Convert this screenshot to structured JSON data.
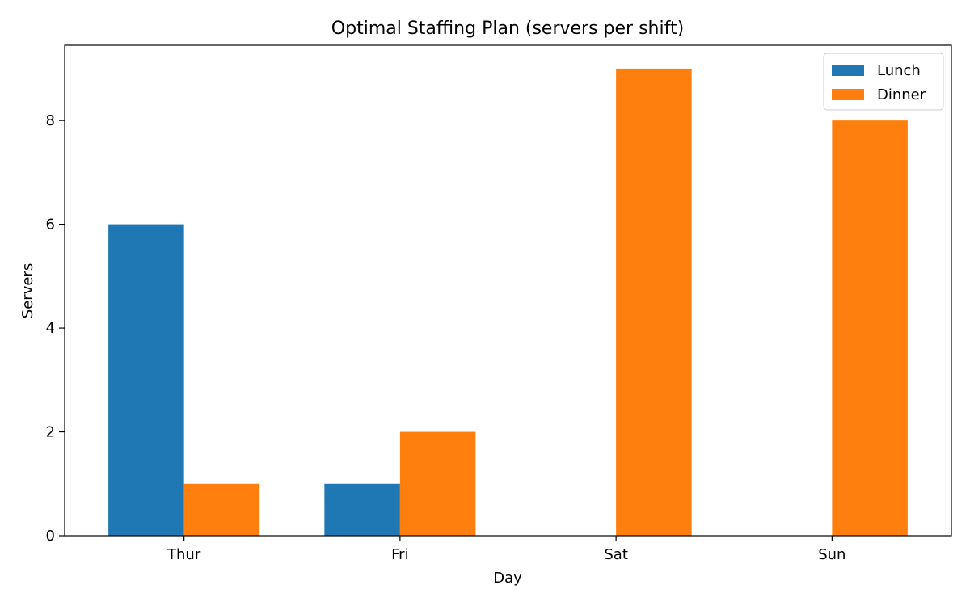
{
  "chart_data": {
    "type": "bar",
    "title": "Optimal Staffing Plan (servers per shift)",
    "xlabel": "Day",
    "ylabel": "Servers",
    "categories": [
      "Thur",
      "Fri",
      "Sat",
      "Sun"
    ],
    "series": [
      {
        "name": "Lunch",
        "color": "#1f77b4",
        "values": [
          6,
          1,
          0,
          0
        ]
      },
      {
        "name": "Dinner",
        "color": "#ff7f0e",
        "values": [
          1,
          2,
          9,
          8
        ]
      }
    ],
    "ylim": [
      0,
      9.45
    ],
    "yticks": [
      0,
      2,
      4,
      6,
      8
    ],
    "grid": false,
    "legend_position": "top-right"
  }
}
